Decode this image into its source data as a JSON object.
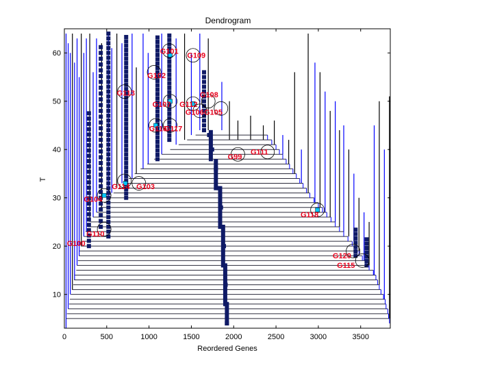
{
  "chart_data": {
    "type": "dendrogram",
    "title": "Dendrogram",
    "xlabel": "Reordered Genes",
    "ylabel": "T",
    "xlim": [
      0,
      3850
    ],
    "ylim": [
      3,
      65
    ],
    "x_ticks": [
      0,
      500,
      1000,
      1500,
      2000,
      2500,
      3000,
      3500
    ],
    "y_ticks": [
      10,
      20,
      30,
      40,
      50,
      60
    ],
    "colors": {
      "blue_lines": "#0000ff",
      "black_lines": "#000000",
      "markers": "#0f1a66",
      "highlight": "#00c8ff",
      "labels": "#e8001c"
    },
    "spine": [
      {
        "x": 1920,
        "y": 4
      },
      {
        "x": 1915,
        "y": 8
      },
      {
        "x": 1905,
        "y": 12
      },
      {
        "x": 1895,
        "y": 16
      },
      {
        "x": 1885,
        "y": 20
      },
      {
        "x": 1870,
        "y": 24
      },
      {
        "x": 1850,
        "y": 28
      },
      {
        "x": 1820,
        "y": 32
      },
      {
        "x": 1790,
        "y": 36
      },
      {
        "x": 1745,
        "y": 40
      },
      {
        "x": 1710,
        "y": 43
      }
    ],
    "merges": [
      {
        "y": 5,
        "left": 20,
        "right": 3840
      },
      {
        "y": 6,
        "left": 30,
        "right": 3830
      },
      {
        "y": 7,
        "left": 45,
        "right": 3820
      },
      {
        "y": 8,
        "left": 55,
        "right": 3800
      },
      {
        "y": 9,
        "left": 65,
        "right": 3790
      },
      {
        "y": 10,
        "left": 75,
        "right": 3770
      },
      {
        "y": 11,
        "left": 90,
        "right": 3740
      },
      {
        "y": 12,
        "left": 105,
        "right": 3720
      },
      {
        "y": 13,
        "left": 115,
        "right": 3700
      },
      {
        "y": 14,
        "left": 125,
        "right": 3680
      },
      {
        "y": 15,
        "left": 140,
        "right": 3650
      },
      {
        "y": 16,
        "left": 150,
        "right": 3600
      },
      {
        "y": 17,
        "left": 160,
        "right": 3560
      },
      {
        "y": 18,
        "left": 170,
        "right": 3520
      },
      {
        "y": 19,
        "left": 180,
        "right": 3480
      },
      {
        "y": 20,
        "left": 195,
        "right": 3440
      },
      {
        "y": 21,
        "left": 210,
        "right": 3400
      },
      {
        "y": 22,
        "left": 230,
        "right": 3350
      },
      {
        "y": 23,
        "left": 250,
        "right": 3300
      },
      {
        "y": 24,
        "left": 280,
        "right": 3250
      },
      {
        "y": 25,
        "left": 310,
        "right": 3200
      },
      {
        "y": 26,
        "left": 340,
        "right": 3150
      },
      {
        "y": 27,
        "left": 380,
        "right": 3100
      },
      {
        "y": 28,
        "left": 420,
        "right": 3050
      },
      {
        "y": 29,
        "left": 470,
        "right": 3000
      },
      {
        "y": 30,
        "left": 520,
        "right": 2950
      },
      {
        "y": 31,
        "left": 580,
        "right": 2900
      },
      {
        "y": 32,
        "left": 640,
        "right": 2860
      },
      {
        "y": 33,
        "left": 700,
        "right": 2820
      },
      {
        "y": 34,
        "left": 760,
        "right": 2780
      },
      {
        "y": 35,
        "left": 830,
        "right": 2740
      },
      {
        "y": 36,
        "left": 900,
        "right": 2700
      },
      {
        "y": 37,
        "left": 980,
        "right": 2660
      },
      {
        "y": 38,
        "left": 1060,
        "right": 2620
      },
      {
        "y": 39,
        "left": 1150,
        "right": 2580
      },
      {
        "y": 40,
        "left": 1250,
        "right": 2540
      },
      {
        "y": 41,
        "left": 1350,
        "right": 2500
      },
      {
        "y": 42,
        "left": 1450,
        "right": 2450
      },
      {
        "y": 43,
        "left": 1550,
        "right": 2400
      }
    ],
    "vertical_lines": [
      {
        "x": 20,
        "y0": 3,
        "y1": 64,
        "c": "b"
      },
      {
        "x": 45,
        "y0": 7,
        "y1": 62,
        "c": "b"
      },
      {
        "x": 70,
        "y0": 10,
        "y1": 60,
        "c": "b"
      },
      {
        "x": 95,
        "y0": 11,
        "y1": 64,
        "c": "k"
      },
      {
        "x": 120,
        "y0": 13,
        "y1": 58,
        "c": "b"
      },
      {
        "x": 150,
        "y0": 16,
        "y1": 63,
        "c": "b"
      },
      {
        "x": 175,
        "y0": 18,
        "y1": 55,
        "c": "b"
      },
      {
        "x": 200,
        "y0": 20,
        "y1": 64,
        "c": "k"
      },
      {
        "x": 230,
        "y0": 22,
        "y1": 60,
        "c": "b"
      },
      {
        "x": 260,
        "y0": 23,
        "y1": 63,
        "c": "b"
      },
      {
        "x": 300,
        "y0": 25,
        "y1": 64,
        "c": "k"
      },
      {
        "x": 340,
        "y0": 26,
        "y1": 56,
        "c": "b"
      },
      {
        "x": 380,
        "y0": 27,
        "y1": 63,
        "c": "b"
      },
      {
        "x": 440,
        "y0": 28,
        "y1": 62,
        "c": "k"
      },
      {
        "x": 520,
        "y0": 30,
        "y1": 64,
        "c": "b"
      },
      {
        "x": 560,
        "y0": 31,
        "y1": 61,
        "c": "b"
      },
      {
        "x": 620,
        "y0": 32,
        "y1": 64,
        "c": "k"
      },
      {
        "x": 680,
        "y0": 33,
        "y1": 62,
        "c": "b"
      },
      {
        "x": 800,
        "y0": 34,
        "y1": 64,
        "c": "b"
      },
      {
        "x": 850,
        "y0": 35,
        "y1": 57,
        "c": "k"
      },
      {
        "x": 930,
        "y0": 36,
        "y1": 64,
        "c": "b"
      },
      {
        "x": 990,
        "y0": 37,
        "y1": 60,
        "c": "b"
      },
      {
        "x": 1150,
        "y0": 39,
        "y1": 64,
        "c": "b"
      },
      {
        "x": 1320,
        "y0": 41,
        "y1": 63,
        "c": "b"
      },
      {
        "x": 1420,
        "y0": 42,
        "y1": 64,
        "c": "k"
      },
      {
        "x": 1500,
        "y0": 43,
        "y1": 60,
        "c": "b"
      },
      {
        "x": 1600,
        "y0": 44,
        "y1": 64,
        "c": "b"
      },
      {
        "x": 1700,
        "y0": 44,
        "y1": 63,
        "c": "k"
      },
      {
        "x": 1860,
        "y0": 44,
        "y1": 54,
        "c": "b"
      },
      {
        "x": 1950,
        "y0": 42,
        "y1": 50,
        "c": "k"
      },
      {
        "x": 2050,
        "y0": 42,
        "y1": 46,
        "c": "k"
      },
      {
        "x": 2200,
        "y0": 42,
        "y1": 47,
        "c": "k"
      },
      {
        "x": 2350,
        "y0": 42,
        "y1": 45,
        "c": "k"
      },
      {
        "x": 2480,
        "y0": 41,
        "y1": 46,
        "c": "k"
      },
      {
        "x": 2580,
        "y0": 39,
        "y1": 43,
        "c": "b"
      },
      {
        "x": 2650,
        "y0": 37,
        "y1": 42,
        "c": "k"
      },
      {
        "x": 2720,
        "y0": 35,
        "y1": 56,
        "c": "k"
      },
      {
        "x": 2800,
        "y0": 33,
        "y1": 40,
        "c": "b"
      },
      {
        "x": 2880,
        "y0": 31,
        "y1": 64,
        "c": "k"
      },
      {
        "x": 2960,
        "y0": 29,
        "y1": 58,
        "c": "b"
      },
      {
        "x": 3020,
        "y0": 28,
        "y1": 56,
        "c": "k"
      },
      {
        "x": 3080,
        "y0": 27,
        "y1": 52,
        "c": "b"
      },
      {
        "x": 3140,
        "y0": 26,
        "y1": 48,
        "c": "k"
      },
      {
        "x": 3200,
        "y0": 25,
        "y1": 50,
        "c": "b"
      },
      {
        "x": 3250,
        "y0": 24,
        "y1": 44,
        "c": "k"
      },
      {
        "x": 3300,
        "y0": 23,
        "y1": 45,
        "c": "b"
      },
      {
        "x": 3360,
        "y0": 22,
        "y1": 40,
        "c": "k"
      },
      {
        "x": 3420,
        "y0": 21,
        "y1": 35,
        "c": "b"
      },
      {
        "x": 3480,
        "y0": 19,
        "y1": 30,
        "c": "k"
      },
      {
        "x": 3540,
        "y0": 17,
        "y1": 27,
        "c": "b"
      },
      {
        "x": 3600,
        "y0": 16,
        "y1": 25,
        "c": "k"
      },
      {
        "x": 3660,
        "y0": 14,
        "y1": 45,
        "c": "b"
      },
      {
        "x": 3720,
        "y0": 12,
        "y1": 50,
        "c": "k"
      },
      {
        "x": 3780,
        "y0": 9,
        "y1": 40,
        "c": "b"
      },
      {
        "x": 3840,
        "y0": 5,
        "y1": 51,
        "c": "k"
      }
    ],
    "marker_columns": [
      {
        "x": 1920,
        "y0": 4,
        "y1": 8,
        "step": 0.8
      },
      {
        "x": 1900,
        "y0": 8,
        "y1": 16,
        "step": 0.8
      },
      {
        "x": 1875,
        "y0": 16,
        "y1": 24,
        "step": 0.8
      },
      {
        "x": 1840,
        "y0": 24,
        "y1": 32,
        "step": 0.8
      },
      {
        "x": 1790,
        "y0": 32,
        "y1": 38,
        "step": 0.8
      },
      {
        "x": 1730,
        "y0": 38,
        "y1": 44,
        "step": 0.8
      },
      {
        "x": 1650,
        "y0": 44,
        "y1": 56,
        "step": 1.0
      },
      {
        "x": 1240,
        "y0": 42,
        "y1": 64,
        "step": 0.9
      },
      {
        "x": 1100,
        "y0": 38,
        "y1": 64,
        "step": 0.9
      },
      {
        "x": 730,
        "y0": 30,
        "y1": 64,
        "step": 0.9
      },
      {
        "x": 520,
        "y0": 22,
        "y1": 64,
        "step": 1.0
      },
      {
        "x": 290,
        "y0": 20,
        "y1": 48,
        "step": 1.1
      },
      {
        "x": 430,
        "y0": 24,
        "y1": 62,
        "step": 1.2
      },
      {
        "x": 3440,
        "y0": 18,
        "y1": 24,
        "step": 0.9
      },
      {
        "x": 3570,
        "y0": 16,
        "y1": 22,
        "step": 0.9
      }
    ],
    "highlight_markers": [
      {
        "x": 1250,
        "y": 59.5
      },
      {
        "x": 1250,
        "y": 50
      },
      {
        "x": 1520,
        "y": 49.5
      },
      {
        "x": 1080,
        "y": 45
      },
      {
        "x": 720,
        "y": 33
      },
      {
        "x": 470,
        "y": 30.5
      },
      {
        "x": 2990,
        "y": 27.5
      }
    ],
    "annotations": [
      {
        "text": "G101",
        "x": 1130,
        "y": 59.8,
        "cx": 1240,
        "cy": 60.5
      },
      {
        "text": "G109",
        "x": 1450,
        "y": 59.0,
        "cx": 1520,
        "cy": 59.5
      },
      {
        "text": "G102",
        "x": 980,
        "y": 54.8,
        "cx": 1060,
        "cy": 56
      },
      {
        "text": "G113",
        "x": 620,
        "y": 51.2,
        "cx": 710,
        "cy": 52
      },
      {
        "text": "G107",
        "x": 1040,
        "y": 48.8,
        "cx": 1250,
        "cy": 50
      },
      {
        "text": "G112",
        "x": 1360,
        "y": 48.8,
        "cx": 1520,
        "cy": 49.5
      },
      {
        "text": "G108",
        "x": 1600,
        "y": 50.8,
        "cx": 1700,
        "cy": 50
      },
      {
        "text": "G106",
        "x": 1430,
        "y": 47.2,
        "cx": 1600,
        "cy": 48
      },
      {
        "text": "G105",
        "x": 1650,
        "y": 47.2,
        "cx": 1850,
        "cy": 48.5
      },
      {
        "text": "G116",
        "x": 1000,
        "y": 43.8,
        "cx": 1080,
        "cy": 45
      },
      {
        "text": "G117",
        "x": 1180,
        "y": 43.8,
        "cx": 1250,
        "cy": 45
      },
      {
        "text": "G99",
        "x": 1930,
        "y": 38.0,
        "cx": 2050,
        "cy": 39
      },
      {
        "text": "G111",
        "x": 2200,
        "y": 39.0,
        "cx": 2400,
        "cy": 39.5
      },
      {
        "text": "G114",
        "x": 560,
        "y": 31.8,
        "cx": 710,
        "cy": 33.5
      },
      {
        "text": "G103",
        "x": 850,
        "y": 31.8,
        "cx": 880,
        "cy": 33
      },
      {
        "text": "G104",
        "x": 230,
        "y": 29.2,
        "cx": 470,
        "cy": 30.5
      },
      {
        "text": "G118",
        "x": 2790,
        "y": 26.0,
        "cx": 2990,
        "cy": 27.5
      },
      {
        "text": "G110",
        "x": 260,
        "y": 22.0,
        "cx": 470,
        "cy": 23.5
      },
      {
        "text": "G100",
        "x": 30,
        "y": 20.0
      },
      {
        "text": "G120",
        "x": 3170,
        "y": 17.5,
        "cx": 3410,
        "cy": 19
      },
      {
        "text": "G115",
        "x": 3220,
        "y": 15.5,
        "cx": 3520,
        "cy": 17
      }
    ]
  }
}
